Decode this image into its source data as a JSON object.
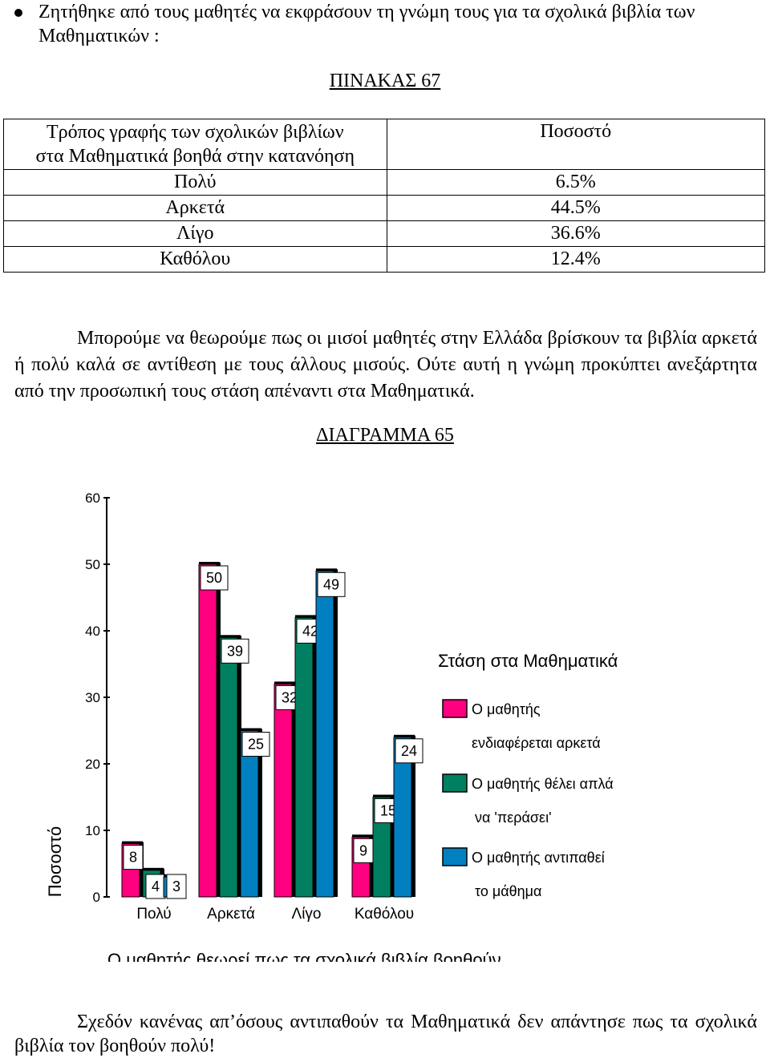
{
  "intro": "Ζητήθηκε από τους μαθητές να εκφράσουν τη γνώμη τους για τα σχολικά βιβλία των Μαθηματικών :",
  "table": {
    "title": "ΠΙΝΑΚΑΣ 67",
    "header_left_line1": "Τρόπος γραφής των σχολικών βιβλίων",
    "header_left_line2": "στα Μαθηματικά βοηθά στην κατανόηση",
    "header_right": "Ποσοστό",
    "rows": [
      {
        "label": "Πολύ",
        "value": "6.5%"
      },
      {
        "label": "Αρκετά",
        "value": "44.5%"
      },
      {
        "label": "Λίγο",
        "value": "36.6%"
      },
      {
        "label": "Καθόλου",
        "value": "12.4%"
      }
    ]
  },
  "paragraph": "Μπορούμε να θεωρούμε πως οι μισοί μαθητές στην Ελλάδα βρίσκουν τα βιβλία αρκετά ή πολύ καλά σε αντίθεση με τους άλλους μισούς. Ούτε αυτή η γνώμη προκύπτει ανεξάρτητα από την προσωπική τους στάση απέναντι στα Μαθηματικά.",
  "diagram_title": "ΔΙΑΓΡΑΜΜΑ 65",
  "chart_data": {
    "type": "bar",
    "categories": [
      "Πολύ",
      "Αρκετά",
      "Λίγο",
      "Καθόλου"
    ],
    "series": [
      {
        "name": "Ο μαθητής ενδιαφέρεται αρκετά",
        "color": "#ff0080",
        "values": [
          8,
          50,
          32,
          9
        ]
      },
      {
        "name": "Ο μαθητής θέλει απλά να 'περάσει'",
        "color": "#008060",
        "values": [
          4,
          39,
          42,
          15
        ]
      },
      {
        "name": "Ο μαθητής αντιπαθεί το μάθημα",
        "color": "#0080c0",
        "values": [
          3,
          25,
          49,
          24
        ]
      }
    ],
    "xlabel": "Ο μαθητής θεωρεί πως τα σχολικά βιβλία βοηθούν",
    "ylabel": "Ποσοστό",
    "ylim": [
      0,
      60
    ],
    "yticks": [
      0,
      10,
      20,
      30,
      40,
      50,
      60
    ],
    "legend_title": "Στάση στα Μαθηματικά",
    "legend_lines": [
      [
        "Ο μαθητής",
        "ενδιαφέρεται αρκετά"
      ],
      [
        "Ο μαθητής θέλει απλά",
        "να 'περάσει'"
      ],
      [
        "Ο μαθητής αντιπαθεί",
        "το μάθημα"
      ]
    ],
    "legend_position": "right",
    "grid": false
  },
  "conclusion": "Σχεδόν κανένας απ’όσους αντιπαθούν τα Μαθηματικά δεν απάντησε πως τα σχολικά βιβλία τον βοηθούν πολύ!"
}
